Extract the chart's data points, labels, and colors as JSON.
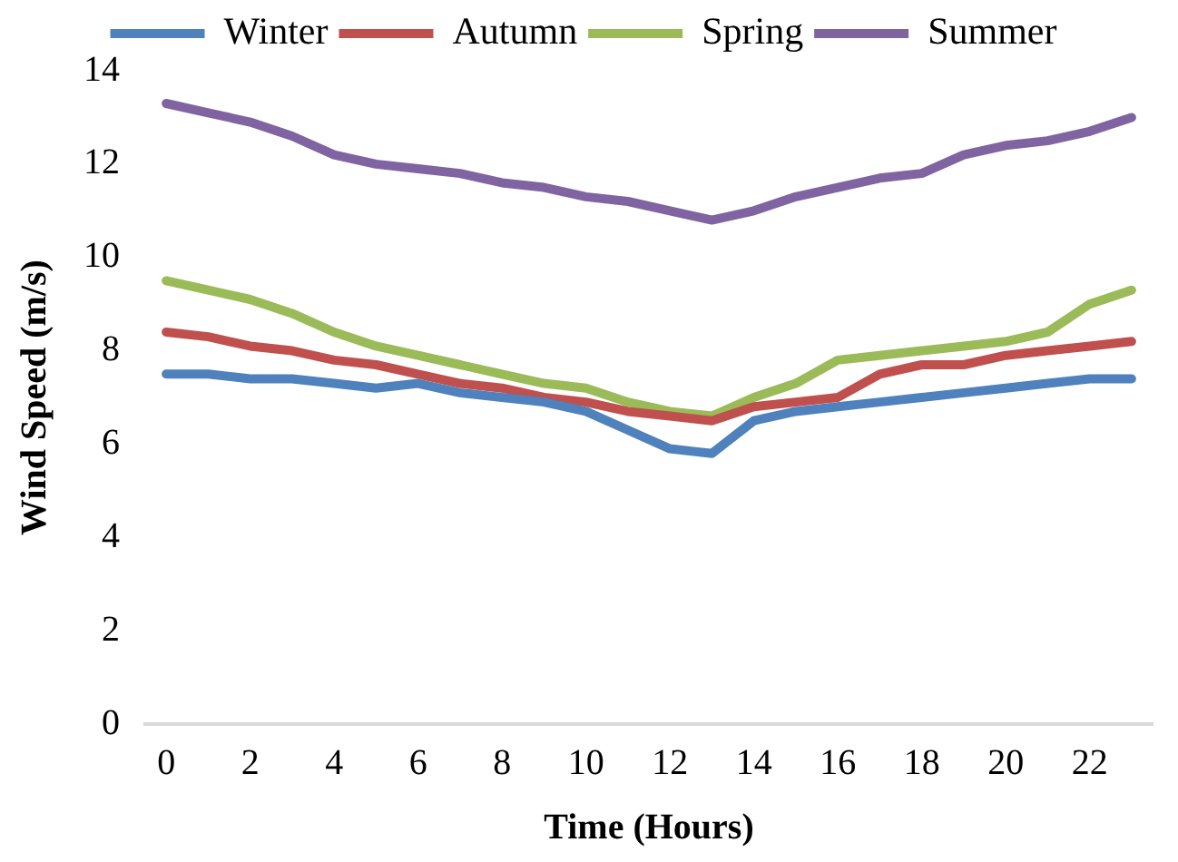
{
  "chart_data": {
    "type": "line",
    "xlabel": "Time (Hours)",
    "ylabel": "Wind Speed (m/s)",
    "categories": [
      "0",
      null,
      "2",
      null,
      "4",
      null,
      "6",
      null,
      "8",
      null,
      "10",
      null,
      "12",
      null,
      "14",
      null,
      "16",
      null,
      "18",
      null,
      "20",
      null,
      "22",
      null
    ],
    "series": [
      {
        "name": "Winter",
        "color": "#4f81bd",
        "values": [
          7.5,
          7.5,
          7.4,
          7.4,
          7.3,
          7.2,
          7.3,
          7.1,
          7.0,
          6.9,
          6.7,
          6.3,
          5.9,
          5.8,
          6.5,
          6.7,
          6.8,
          6.9,
          7.0,
          7.1,
          7.2,
          7.3,
          7.4,
          7.4
        ]
      },
      {
        "name": "Autumn",
        "color": "#c0504d",
        "values": [
          8.4,
          8.3,
          8.1,
          8.0,
          7.8,
          7.7,
          7.5,
          7.3,
          7.2,
          7.0,
          6.9,
          6.7,
          6.6,
          6.5,
          6.8,
          6.9,
          7.0,
          7.5,
          7.7,
          7.7,
          7.9,
          8.0,
          8.1,
          8.2
        ]
      },
      {
        "name": "Spring",
        "color": "#9bbb59",
        "values": [
          9.5,
          9.3,
          9.1,
          8.8,
          8.4,
          8.1,
          7.9,
          7.7,
          7.5,
          7.3,
          7.2,
          6.9,
          6.7,
          6.6,
          7.0,
          7.3,
          7.8,
          7.9,
          8.0,
          8.1,
          8.2,
          8.4,
          9.0,
          9.3
        ]
      },
      {
        "name": "Summer",
        "color": "#8064a2",
        "values": [
          13.3,
          13.1,
          12.9,
          12.6,
          12.2,
          12.0,
          11.9,
          11.8,
          11.6,
          11.5,
          11.3,
          11.2,
          11.0,
          10.8,
          11.0,
          11.3,
          11.5,
          11.7,
          11.8,
          12.2,
          12.4,
          12.5,
          12.7,
          13.0
        ]
      }
    ],
    "ylim": [
      0,
      14
    ],
    "yticks": [
      0,
      2,
      4,
      6,
      8,
      10,
      12,
      14
    ],
    "grid": false,
    "legend": "top",
    "marker": "none",
    "line_style": "solid"
  }
}
